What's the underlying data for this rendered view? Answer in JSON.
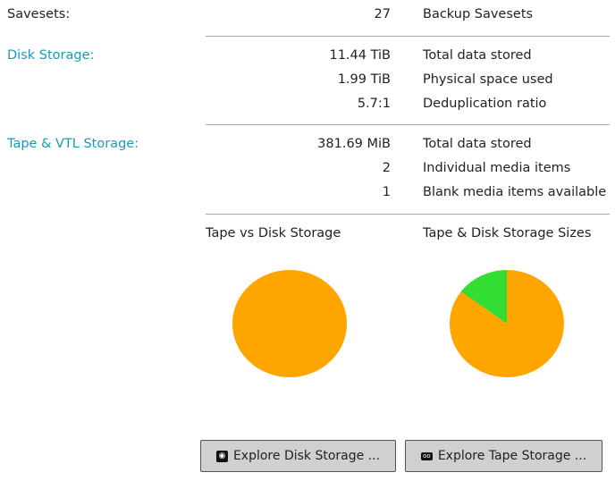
{
  "savesets": {
    "label": "Savesets:",
    "value": "27",
    "desc": "Backup Savesets"
  },
  "disk": {
    "label": "Disk Storage:",
    "rows": [
      {
        "value": "11.44 TiB",
        "desc": "Total data stored"
      },
      {
        "value": "1.99 TiB",
        "desc": "Physical space used"
      },
      {
        "value": "5.7:1",
        "desc": "Deduplication ratio"
      }
    ]
  },
  "tape": {
    "label": "Tape & VTL Storage:",
    "rows": [
      {
        "value": "381.69 MiB",
        "desc": "Total data stored"
      },
      {
        "value": "2",
        "desc": "Individual media items"
      },
      {
        "value": "1",
        "desc": "Blank media items available"
      }
    ]
  },
  "charts": [
    {
      "title": "Tape vs Disk Storage",
      "slices": [
        {
          "fraction": 1.0,
          "color": "#ffa500"
        }
      ]
    },
    {
      "title": "Tape & Disk Storage Sizes",
      "slices": [
        {
          "fraction": 0.852,
          "color": "#ffa500"
        },
        {
          "fraction": 0.148,
          "color": "#33dd33"
        }
      ]
    }
  ],
  "buttons": {
    "disk": "Explore Disk Storage ...",
    "tape": "Explore Tape Storage ..."
  },
  "colors": {
    "label_accent": "#1a9bb5"
  }
}
